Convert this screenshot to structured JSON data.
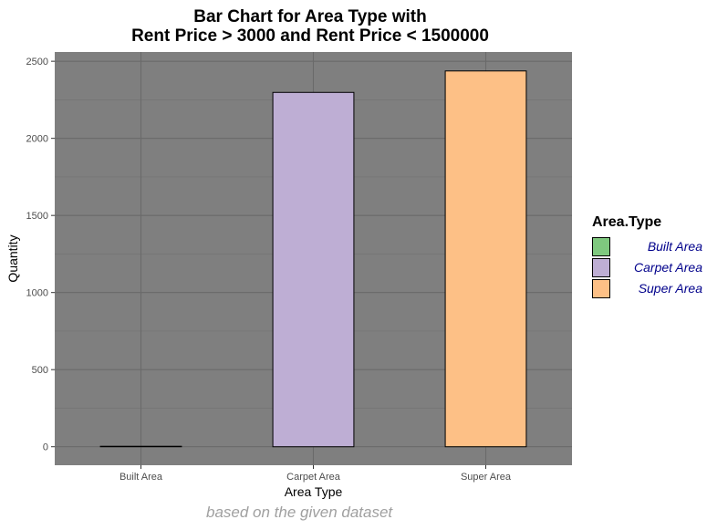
{
  "chart_data": {
    "type": "bar",
    "title_lines": [
      "Bar Chart for Area Type with",
      "Rent Price > 3000 and Rent Price < 1500000"
    ],
    "xlabel": "Area Type",
    "ylabel": "Quantity",
    "categories": [
      "Built Area",
      "Carpet Area",
      "Super Area"
    ],
    "values": [
      2,
      2298,
      2437
    ],
    "colors": [
      "#7fc97f",
      "#beaed4",
      "#fdc086"
    ],
    "ylim": [
      -120,
      2560
    ],
    "yticks": [
      0,
      500,
      1000,
      1500,
      2000,
      2500
    ],
    "legend": {
      "title": "Area.Type",
      "items": [
        "Built Area",
        "Carpet Area",
        "Super Area"
      ],
      "placement": "right"
    },
    "caption": "based on the given dataset",
    "panel_color": "#7f7f7f",
    "grid": true
  }
}
